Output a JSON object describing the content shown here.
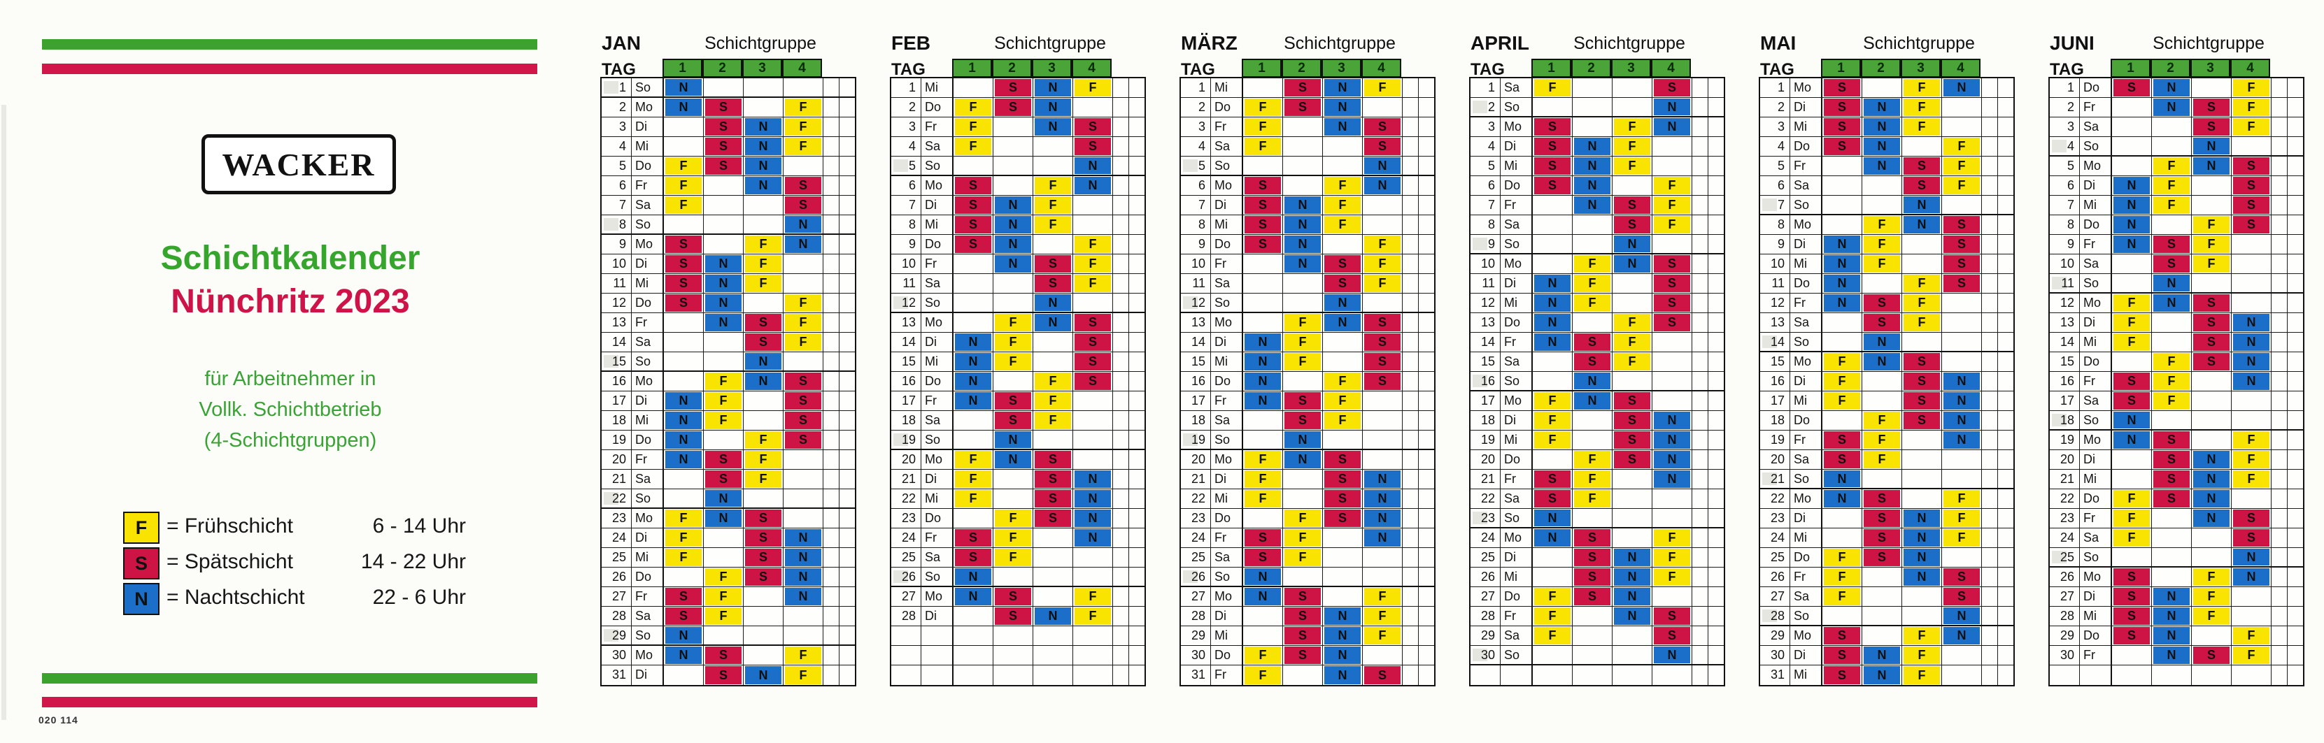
{
  "left_panel": {
    "logo_text": "WACKER",
    "title_line1": "Schichtkalender",
    "title_line2": "Nünchritz 2023",
    "subtitle_lines": [
      "für Arbeitnehmer in",
      "Vollk. Schichtbetrieb",
      "(4-Schichtgruppen)"
    ],
    "legend": [
      {
        "code": "F",
        "color": "#f8e400",
        "label": "= Frühschicht",
        "time": "6 - 14 Uhr"
      },
      {
        "code": "S",
        "color": "#ce1345",
        "label": "= Spätschicht",
        "time": "14 - 22 Uhr"
      },
      {
        "code": "N",
        "color": "#1b6fc8",
        "label": "= Nachtschicht",
        "time": "22 - 6 Uhr"
      }
    ],
    "footer_code": "020 114",
    "bar_green_color": "#3ba32d",
    "bar_red_color": "#d0164a"
  },
  "calendar": {
    "group_header_title": "Schichtgruppe",
    "day_col_header": "TAG",
    "group_numbers": [
      "1",
      "2",
      "3",
      "4"
    ],
    "header_green": "#4aa437",
    "shift_colors": {
      "F": "#f8e400",
      "S": "#ce1345",
      "N": "#1b6fc8"
    },
    "months": [
      {
        "name": "JAN",
        "days": [
          "So:N...",
          "Mo:NS.F",
          "Di:.SNF",
          "Mi:.SNF",
          "Do:FSN.",
          "Fr:F.NS",
          "Sa:F..S",
          "So:...N",
          "Mo:S.FN",
          "Di:SNF.",
          "Mi:SNF.",
          "Do:SN.F",
          "Fr:.NSF",
          "Sa:..SF",
          "So:..N.",
          "Mo:.FNS",
          "Di:NF.S",
          "Mi:NF.S",
          "Do:N.FS",
          "Fr:NSF.",
          "Sa:.SF.",
          "So:.N..",
          "Mo:FNS.",
          "Di:F.SN",
          "Mi:F.SN",
          "Do:.FSN",
          "Fr:SF.N",
          "Sa:SF..",
          "So:N...",
          "Mo:NS.F",
          "Di:.SNF"
        ]
      },
      {
        "name": "FEB",
        "days": [
          "Mi:.SNF",
          "Do:FSN.",
          "Fr:F.NS",
          "Sa:F..S",
          "So:...N",
          "Mo:S.FN",
          "Di:SNF.",
          "Mi:SNF.",
          "Do:SN.F",
          "Fr:.NSF",
          "Sa:..SF",
          "So:..N.",
          "Mo:.FNS",
          "Di:NF.S",
          "Mi:NF.S",
          "Do:N.FS",
          "Fr:NSF.",
          "Sa:.SF.",
          "So:.N..",
          "Mo:FNS.",
          "Di:F.SN",
          "Mi:F.SN",
          "Do:.FSN",
          "Fr:SF.N",
          "Sa:SF..",
          "So:N...",
          "Mo:NS.F",
          "Di:.SNF"
        ]
      },
      {
        "name": "MÄRZ",
        "days": [
          "Mi:.SNF",
          "Do:FSN.",
          "Fr:F.NS",
          "Sa:F..S",
          "So:...N",
          "Mo:S.FN",
          "Di:SNF.",
          "Mi:SNF.",
          "Do:SN.F",
          "Fr:.NSF",
          "Sa:..SF",
          "So:..N.",
          "Mo:.FNS",
          "Di:NF.S",
          "Mi:NF.S",
          "Do:N.FS",
          "Fr:NSF.",
          "Sa:.SF.",
          "So:.N..",
          "Mo:FNS.",
          "Di:F.SN",
          "Mi:F.SN",
          "Do:.FSN",
          "Fr:SF.N",
          "Sa:SF..",
          "So:N...",
          "Mo:NS.F",
          "Di:.SNF",
          "Mi:.SNF",
          "Do:FSN.",
          "Fr:F.NS"
        ]
      },
      {
        "name": "APRIL",
        "days": [
          "Sa:F..S",
          "So:...N",
          "Mo:S.FN",
          "Di:SNF.",
          "Mi:SNF.",
          "Do:SN.F",
          "Fr:.NSF",
          "Sa:..SF",
          "So:..N.",
          "Mo:.FNS",
          "Di:NF.S",
          "Mi:NF.S",
          "Do:N.FS",
          "Fr:NSF.",
          "Sa:.SF.",
          "So:.N..",
          "Mo:FNS.",
          "Di:F.SN",
          "Mi:F.SN",
          "Do:.FSN",
          "Fr:SF.N",
          "Sa:SF..",
          "So:N...",
          "Mo:NS.F",
          "Di:.SNF",
          "Mi:.SNF",
          "Do:FSN.",
          "Fr:F.NS",
          "Sa:F..S",
          "So:...N"
        ]
      },
      {
        "name": "MAI",
        "days": [
          "Mo:S.FN",
          "Di:SNF.",
          "Mi:SNF.",
          "Do:SN.F",
          "Fr:.NSF",
          "Sa:..SF",
          "So:..N.",
          "Mo:.FNS",
          "Di:NF.S",
          "Mi:NF.S",
          "Do:N.FS",
          "Fr:NSF.",
          "Sa:.SF.",
          "So:.N..",
          "Mo:FNS.",
          "Di:F.SN",
          "Mi:F.SN",
          "Do:.FSN",
          "Fr:SF.N",
          "Sa:SF..",
          "So:N...",
          "Mo:NS.F",
          "Di:.SNF",
          "Mi:.SNF",
          "Do:FSN.",
          "Fr:F.NS",
          "Sa:F..S",
          "So:...N",
          "Mo:S.FN",
          "Di:SNF.",
          "Mi:SNF."
        ]
      },
      {
        "name": "JUNI",
        "days": [
          "Do:SN.F",
          "Fr:.NSF",
          "Sa:..SF",
          "So:..N.",
          "Mo:.FNS",
          "Di:NF.S",
          "Mi:NF.S",
          "Do:N.FS",
          "Fr:NSF.",
          "Sa:.SF.",
          "So:.N..",
          "Mo:FNS.",
          "Di:F.SN",
          "Mi:F.SN",
          "Do:.FSN",
          "Fr:SF.N",
          "Sa:SF..",
          "So:N...",
          "Mo:NS.F",
          "Di:.SNF",
          "Mi:.SNF",
          "Do:FSN.",
          "Fr:F.NS",
          "Sa:F..S",
          "So:...N",
          "Mo:S.FN",
          "Di:SNF.",
          "Mi:SNF.",
          "Do:SN.F",
          "Fr:.NSF"
        ]
      }
    ]
  }
}
